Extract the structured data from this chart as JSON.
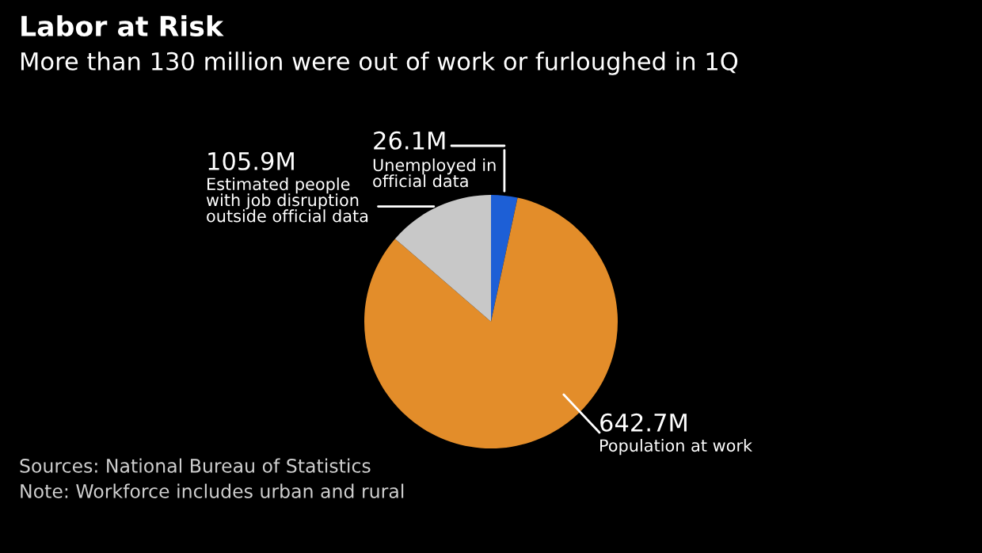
{
  "chart_data": {
    "type": "pie",
    "title": "Labor at Risk",
    "subtitle": "More than 130 million were out of work or furloughed in 1Q",
    "categories": [
      "Unemployed in\nofficial data",
      "Population at work",
      "Estimated people\nwith job disruption\noutside official data"
    ],
    "values": [
      26.1,
      642.7,
      105.9
    ],
    "value_labels": [
      "26.1M",
      "642.7M",
      "105.9M"
    ],
    "colors": [
      "#1d5fd6",
      "#e38d2a",
      "#c8c8c8"
    ],
    "annotations": [
      "Sources: National Bureau of Statistics",
      "Note: Workforce includes urban and rural"
    ],
    "legend": false
  }
}
